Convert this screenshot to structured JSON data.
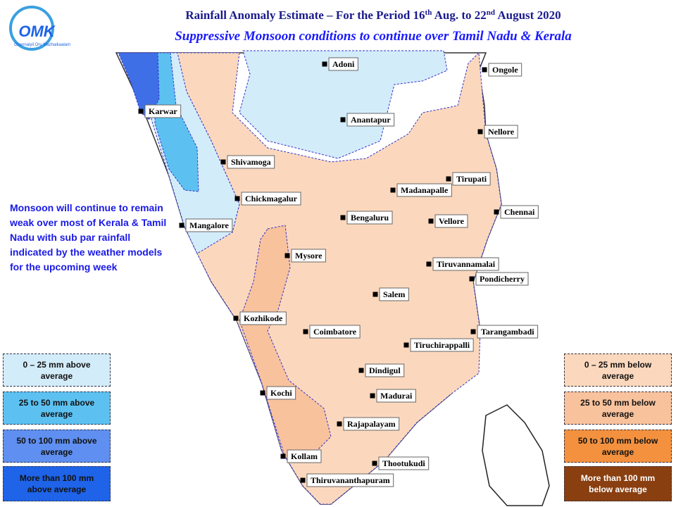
{
  "logo": {
    "text": "OMK",
    "tagline": "Chennaiyil Oru Mazhaikaalam"
  },
  "header": {
    "title_parts": [
      "Rainfall Anomaly Estimate – For the Period 16",
      "th",
      " Aug. to 22",
      "nd",
      " August 2020"
    ],
    "subtitle": "Suppressive Monsoon conditions to continue over Tamil Nadu & Kerala"
  },
  "note": "Monsoon will continue to remain weak over most of Kerala & Tamil Nadu with sub par rainfall indicated by the weather models for the upcoming week",
  "cities": [
    "Adoni",
    "Ongole",
    "Karwar",
    "Anantapur",
    "Nellore",
    "Shivamoga",
    "Tirupati",
    "Madanapalle",
    "Chickmagalur",
    "Bengaluru",
    "Vellore",
    "Chennai",
    "Mangalore",
    "Mysore",
    "Tiruvannamalai",
    "Pondicherry",
    "Salem",
    "Kozhikode",
    "Coimbatore",
    "Tarangambadi",
    "Tiruchirappalli",
    "Dindigul",
    "Kochi",
    "Madurai",
    "Rajapalayam",
    "Kollam",
    "Thootukudi",
    "Thiruvananthapuram"
  ],
  "legend_above": [
    {
      "label": "0 – 25 mm above average",
      "color": "#d3ecf9"
    },
    {
      "label": "25 to 50 mm above average",
      "color": "#5cc1f1"
    },
    {
      "label": "50 to 100 mm above average",
      "color": "#5f8ff0"
    },
    {
      "label": "More than 100 mm above average",
      "color": "#1e63e8"
    }
  ],
  "legend_below": [
    {
      "label": "0 – 25 mm below average",
      "color": "#fbd8bd"
    },
    {
      "label": "25 to 50 mm below average",
      "color": "#f8c29d"
    },
    {
      "label": "50 to 100 mm below average",
      "color": "#f3913f"
    },
    {
      "label": "More than 100 mm below average",
      "color": "#8a3f10"
    }
  ]
}
